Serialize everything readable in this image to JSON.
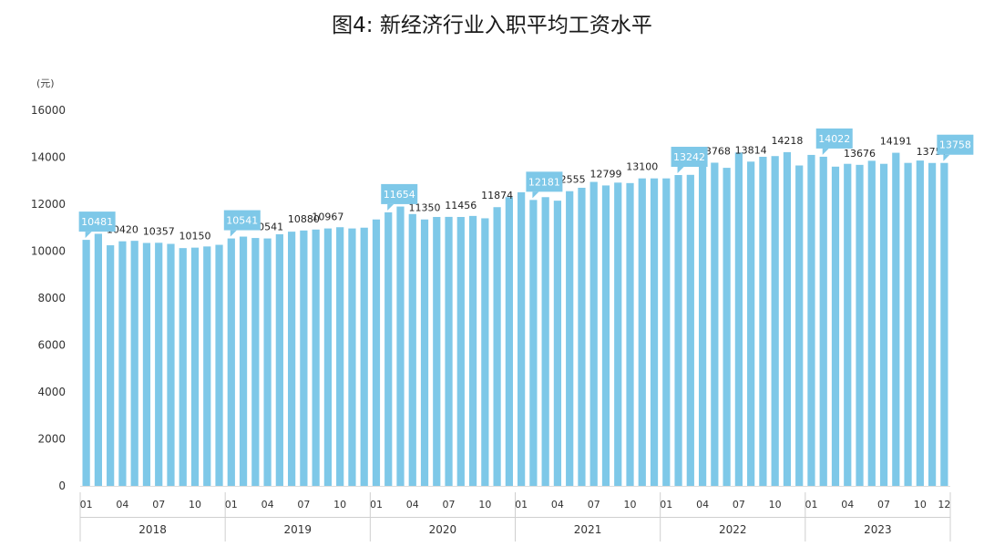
{
  "chart_data": {
    "type": "bar",
    "title": "图4: 新经济行业入职平均工资水平",
    "unit_label": "(元)",
    "ylim": [
      0,
      16000
    ],
    "y_ticks": [
      0,
      2000,
      4000,
      6000,
      8000,
      10000,
      12000,
      14000,
      16000
    ],
    "grid": false,
    "colors": {
      "bar": "#7ec8e8",
      "callout": "#7ec8e8",
      "callout_text": "#ffffff",
      "text": "#333333",
      "axis": "#9a9a9a"
    },
    "years": [
      "2018",
      "2019",
      "2020",
      "2021",
      "2022",
      "2023"
    ],
    "months": [
      "01",
      "02",
      "03",
      "04",
      "05",
      "06",
      "07",
      "08",
      "09",
      "10",
      "11",
      "12"
    ],
    "month_tick_labels": [
      "01",
      "04",
      "07",
      "10"
    ],
    "last_month_tick_label": "12",
    "values": [
      10481,
      10740,
      10250,
      10420,
      10440,
      10350,
      10357,
      10310,
      10130,
      10150,
      10200,
      10270,
      10541,
      10620,
      10560,
      10541,
      10720,
      10830,
      10880,
      10920,
      10967,
      11020,
      10967,
      11000,
      11350,
      11654,
      11900,
      11580,
      11350,
      11456,
      11460,
      11456,
      11500,
      11400,
      11874,
      12300,
      12510,
      12181,
      12300,
      12150,
      12555,
      12700,
      12950,
      12799,
      12920,
      12900,
      13100,
      13100,
      13100,
      13242,
      13250,
      13700,
      13768,
      13550,
      14200,
      13814,
      14020,
      14050,
      14218,
      13650,
      14100,
      14022,
      13600,
      13720,
      13676,
      13850,
      13720,
      14191,
      13760,
      13860,
      13757,
      13758
    ],
    "plain_labels": [
      {
        "index": 3,
        "text": "10420"
      },
      {
        "index": 6,
        "text": "10357"
      },
      {
        "index": 9,
        "text": "10150"
      },
      {
        "index": 15,
        "text": "10541"
      },
      {
        "index": 18,
        "text": "10880"
      },
      {
        "index": 20,
        "text": "10967"
      },
      {
        "index": 28,
        "text": "11350"
      },
      {
        "index": 31,
        "text": "11456"
      },
      {
        "index": 34,
        "text": "11874"
      },
      {
        "index": 40,
        "text": "12555"
      },
      {
        "index": 43,
        "text": "12799"
      },
      {
        "index": 46,
        "text": "13100"
      },
      {
        "index": 52,
        "text": "13768"
      },
      {
        "index": 55,
        "text": "13814"
      },
      {
        "index": 58,
        "text": "14218"
      },
      {
        "index": 64,
        "text": "13676"
      },
      {
        "index": 67,
        "text": "14191"
      },
      {
        "index": 70,
        "text": "13757"
      }
    ],
    "callout_labels": [
      {
        "index": 0,
        "text": "10481"
      },
      {
        "index": 12,
        "text": "10541"
      },
      {
        "index": 25,
        "text": "11654"
      },
      {
        "index": 37,
        "text": "12181"
      },
      {
        "index": 49,
        "text": "13242"
      },
      {
        "index": 61,
        "text": "14022"
      },
      {
        "index": 71,
        "text": "13758"
      }
    ]
  }
}
